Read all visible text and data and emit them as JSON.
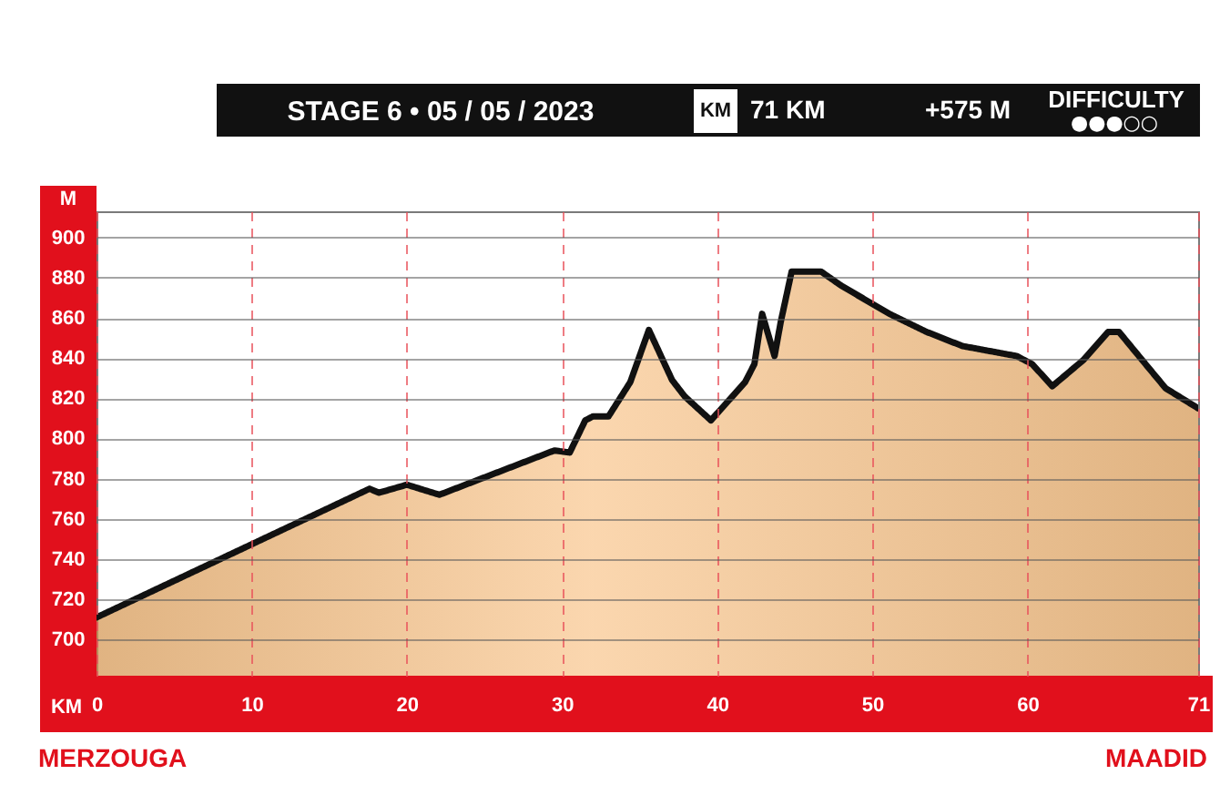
{
  "chart_data": {
    "type": "area",
    "title": "STAGE 6 • 05 / 05 / 2023",
    "xlabel": "KM",
    "ylabel": "M",
    "annotations": [
      "KM",
      "71 KM",
      "+575 M",
      "DIFFICULTY",
      "●●●○○",
      "MERZOUGA",
      "MAADID"
    ],
    "x": [
      0,
      17.6,
      18.2,
      20.0,
      22.1,
      29.5,
      30.5,
      31.5,
      32.0,
      33.0,
      34.4,
      35.6,
      37.1,
      37.9,
      39.6,
      41.8,
      42.4,
      42.9,
      43.7,
      44.1,
      44.8,
      46.7,
      48.0,
      51.1,
      53.5,
      55.8,
      59.3,
      60.3,
      61.6,
      63.6,
      65.2,
      65.9,
      67.5,
      68.9,
      71
    ],
    "values": [
      711,
      775,
      773,
      777,
      772,
      794,
      793,
      809,
      811,
      811,
      828,
      854,
      829,
      821,
      809,
      828,
      837,
      862,
      841,
      858,
      883,
      883,
      876,
      862,
      853,
      846,
      841,
      837,
      826,
      839,
      853,
      853,
      838,
      825,
      815
    ],
    "color": "#e8ac6a",
    "line_style": "solid",
    "xlim": [
      0,
      71
    ],
    "xticks": [
      0,
      10,
      20,
      30,
      40,
      50,
      60,
      71
    ],
    "ylim": [
      682,
      913
    ],
    "yticks": [
      700,
      720,
      740,
      760,
      780,
      800,
      820,
      840,
      860,
      880,
      900
    ],
    "grid": true
  }
}
